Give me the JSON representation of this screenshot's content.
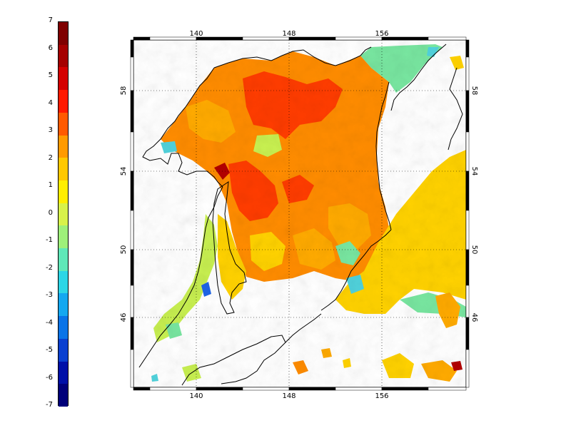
{
  "colorbar": {
    "labels": [
      "7",
      "6",
      "5",
      "4",
      "3",
      "2",
      "1",
      "0",
      "-1",
      "-2",
      "-3",
      "-4",
      "-5",
      "-6",
      "-7"
    ],
    "colors": [
      "#7f0000",
      "#a50000",
      "#d40000",
      "#ff1a00",
      "#ff5a00",
      "#ff9a00",
      "#ffc800",
      "#ffee00",
      "#d8f24a",
      "#9ef07a",
      "#5fe8b8",
      "#2cd6e6",
      "#14a8f0",
      "#0a74e8",
      "#0a40d0",
      "#0010a8",
      "#00007a"
    ]
  },
  "map": {
    "lon_ticks": [
      "140",
      "148",
      "156"
    ],
    "lat_ticks": [
      "58",
      "54",
      "50",
      "46"
    ],
    "colors": {
      "land": "#ffffff",
      "coast": "#000000",
      "warm_high": "#ff3c00",
      "warm_mid": "#ff8c00",
      "warm": "#ffaa00",
      "mild": "#ffd200",
      "neutral": "#c8f050",
      "cool": "#78e6a0",
      "cold": "#50d2dc",
      "very_cold": "#1e64e6",
      "extreme": "#b40000"
    }
  }
}
